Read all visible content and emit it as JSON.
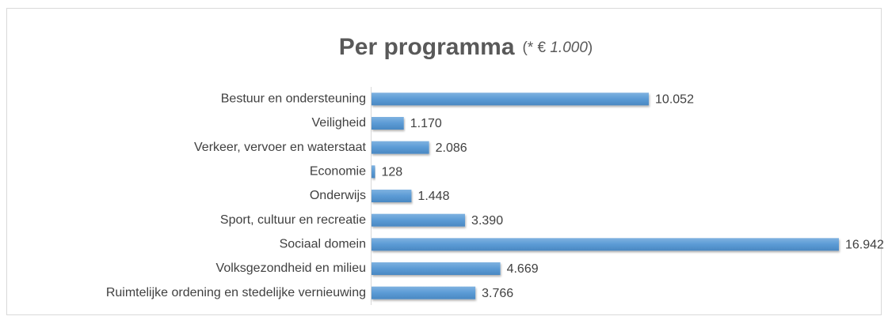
{
  "chart_data": {
    "type": "barh",
    "title": "Per programma",
    "subtitle_parts": [
      "(* € ",
      "1.000",
      ")"
    ],
    "categories": [
      "Bestuur en ondersteuning",
      "Veiligheid",
      "Verkeer, vervoer en waterstaat",
      "Economie",
      "Onderwijs",
      "Sport, cultuur en recreatie",
      "Sociaal domein",
      "Volksgezondheid en milieu",
      "Ruimtelijke ordening en stedelijke vernieuwing"
    ],
    "values": [
      10052,
      1170,
      2086,
      128,
      1448,
      3390,
      16942,
      4669,
      3766
    ],
    "value_labels": [
      "10.052",
      "1.170",
      "2.086",
      "128",
      "1.448",
      "3.390",
      "16.942",
      "4.669",
      "3.766"
    ],
    "color": "#5b9bd5",
    "xlim": [
      0,
      17000
    ]
  }
}
